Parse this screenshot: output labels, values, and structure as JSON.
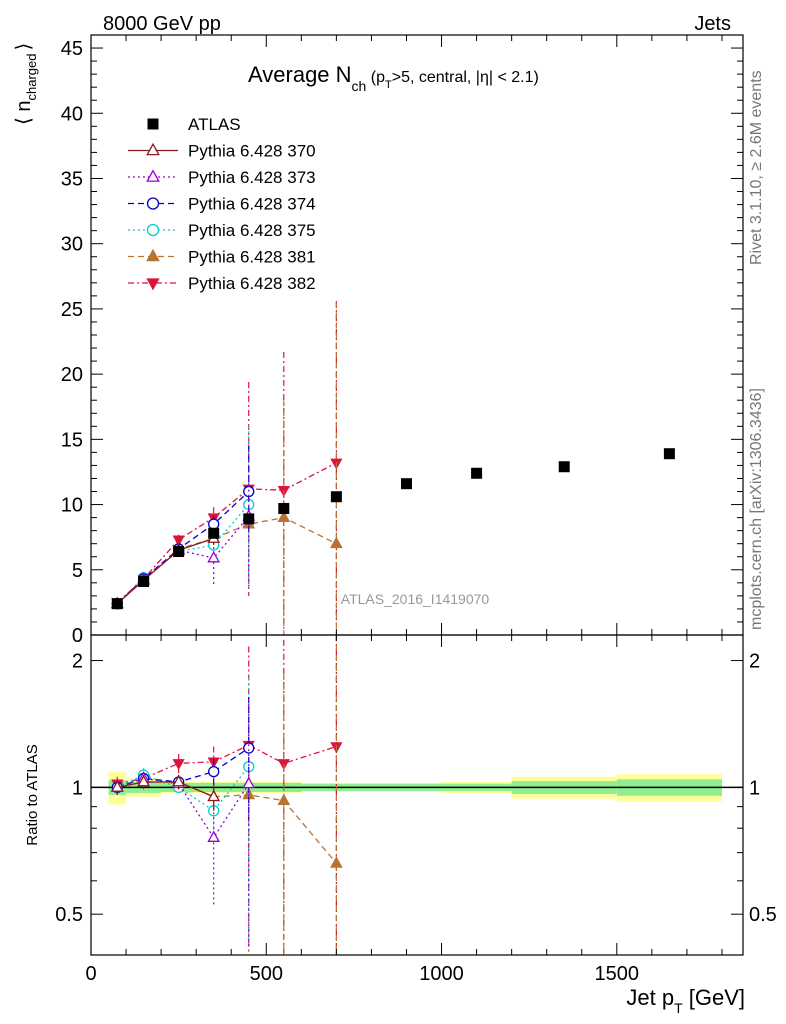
{
  "header": {
    "left": "8000 GeV pp",
    "right": "Jets",
    "rivet": "Rivet 3.1.10, ≥ 2.6M events",
    "mcplots": "mcplots.cern.ch [arXiv:1306.3436]"
  },
  "chart_data": [
    {
      "type": "scatter",
      "title": {
        "main": "Average N",
        "sub": "ch",
        "rest1": " (p",
        "sub2": "T",
        "rest2": ">5, central, |η| < 2.1)"
      },
      "ylabel": {
        "main": "⟨ n",
        "sub": "charged",
        "close": "⟩"
      },
      "watermark": "ATLAS_2016_I1419070",
      "xlim": [
        0,
        1860
      ],
      "ylim": [
        0,
        46
      ],
      "yticks": [
        0,
        5,
        10,
        15,
        20,
        25,
        30,
        35,
        40,
        45
      ],
      "series": [
        {
          "name": "ATLAS",
          "color": "#000000",
          "marker": "square",
          "line": "none",
          "x": [
            75,
            150,
            250,
            350,
            450,
            550,
            700,
            900,
            1100,
            1350,
            1650
          ],
          "y": [
            2.4,
            4.1,
            6.4,
            7.8,
            8.9,
            9.7,
            10.6,
            11.6,
            12.4,
            12.9,
            13.9
          ],
          "err": [
            0,
            0,
            0,
            0,
            0,
            0,
            0,
            0,
            0,
            0,
            0
          ]
        },
        {
          "name": "Pythia 6.428 370",
          "color": "#8b1a1a",
          "marker": "triangle-up-open",
          "line": "solid",
          "x": [
            75,
            150,
            250,
            350
          ],
          "y": [
            2.4,
            4.2,
            6.5,
            7.4
          ],
          "err": [
            0.1,
            0.2,
            0.3,
            0.5
          ]
        },
        {
          "name": "Pythia 6.428 373",
          "color": "#9400d3",
          "marker": "triangle-up-open",
          "line": "dotted",
          "x": [
            75,
            150,
            250,
            350,
            450
          ],
          "y": [
            2.4,
            4.3,
            6.5,
            5.9,
            9.1
          ],
          "err": [
            0.1,
            0.2,
            0.3,
            2.0,
            5.5
          ]
        },
        {
          "name": "Pythia 6.428 374",
          "color": "#0000cd",
          "marker": "circle-open",
          "line": "dashed",
          "x": [
            75,
            150,
            250,
            350,
            450
          ],
          "y": [
            2.4,
            4.3,
            6.6,
            8.5,
            11.0
          ],
          "err": [
            0.1,
            0.2,
            0.3,
            0.6,
            3.5
          ]
        },
        {
          "name": "Pythia 6.428 375",
          "color": "#00ced1",
          "marker": "circle-open",
          "line": "dotted",
          "x": [
            75,
            150,
            250,
            350,
            450
          ],
          "y": [
            2.4,
            4.4,
            6.4,
            6.9,
            10.0
          ],
          "err": [
            0.1,
            0.2,
            0.3,
            0.8,
            6.0
          ]
        },
        {
          "name": "Pythia 6.428 381",
          "color": "#b87333",
          "marker": "triangle-up",
          "line": "dashed",
          "x": [
            75,
            150,
            250,
            350,
            450,
            550,
            700
          ],
          "y": [
            2.4,
            4.2,
            6.6,
            7.4,
            8.5,
            9.0,
            7.0
          ],
          "err": [
            0.1,
            0.2,
            0.3,
            0.5,
            2.0,
            9.0,
            18.5
          ]
        },
        {
          "name": "Pythia 6.428 382",
          "color": "#dc143c",
          "marker": "triangle-down",
          "line": "dashdot",
          "x": [
            75,
            150,
            250,
            350,
            450,
            550,
            700
          ],
          "y": [
            2.5,
            4.3,
            7.3,
            9.0,
            11.2,
            11.1,
            13.2
          ],
          "err": [
            0.1,
            0.2,
            0.4,
            0.8,
            8.2,
            10.6,
            12.4
          ]
        }
      ],
      "atlas_bands": {
        "bins": [
          [
            50,
            100
          ],
          [
            100,
            200
          ],
          [
            200,
            300
          ],
          [
            300,
            400
          ],
          [
            400,
            500
          ],
          [
            500,
            600
          ],
          [
            600,
            800
          ],
          [
            800,
            1000
          ],
          [
            1000,
            1200
          ],
          [
            1200,
            1500
          ],
          [
            1500,
            1800
          ]
        ]
      }
    },
    {
      "type": "scatter",
      "ylabel": "Ratio to ATLAS",
      "xlabel": {
        "main": "Jet p",
        "sub": "T",
        "unit": " [GeV]"
      },
      "xlim": [
        0,
        1860
      ],
      "ylim": [
        0.4,
        2.3
      ],
      "ylog": true,
      "xticks": [
        0,
        500,
        1000,
        1500
      ],
      "yticks_labeled": [
        0.5,
        1,
        2
      ],
      "series": [
        {
          "name": "Pythia 6.428 370",
          "color": "#8b1a1a",
          "marker": "triangle-up-open",
          "line": "solid",
          "x": [
            75,
            150,
            250,
            350
          ],
          "y": [
            1.0,
            1.03,
            1.03,
            0.95
          ],
          "err": [
            0.04,
            0.04,
            0.04,
            0.07
          ]
        },
        {
          "name": "Pythia 6.428 373",
          "color": "#9400d3",
          "marker": "triangle-up-open",
          "line": "dotted",
          "x": [
            75,
            150,
            250,
            350,
            450
          ],
          "y": [
            1.0,
            1.05,
            1.02,
            0.76,
            1.02
          ],
          "err": [
            0.04,
            0.04,
            0.04,
            0.24,
            0.6
          ]
        },
        {
          "name": "Pythia 6.428 374",
          "color": "#0000cd",
          "marker": "circle-open",
          "line": "dashed",
          "x": [
            75,
            150,
            250,
            350,
            450
          ],
          "y": [
            1.0,
            1.05,
            1.03,
            1.09,
            1.24
          ],
          "err": [
            0.04,
            0.04,
            0.04,
            0.08,
            0.4
          ]
        },
        {
          "name": "Pythia 6.428 375",
          "color": "#00ced1",
          "marker": "circle-open",
          "line": "dotted",
          "x": [
            75,
            150,
            250,
            350,
            450
          ],
          "y": [
            1.0,
            1.07,
            1.0,
            0.88,
            1.12
          ],
          "err": [
            0.04,
            0.04,
            0.04,
            0.1,
            0.7
          ]
        },
        {
          "name": "Pythia 6.428 381",
          "color": "#b87333",
          "marker": "triangle-up",
          "line": "dashed",
          "x": [
            75,
            150,
            250,
            350,
            450,
            550,
            700
          ],
          "y": [
            1.0,
            1.03,
            1.03,
            0.95,
            0.96,
            0.93,
            0.66
          ],
          "err": [
            0.04,
            0.04,
            0.04,
            0.06,
            0.2,
            0.93,
            1.74
          ]
        },
        {
          "name": "Pythia 6.428 382",
          "color": "#dc143c",
          "marker": "triangle-down",
          "line": "dashdot",
          "x": [
            75,
            150,
            250,
            350,
            450,
            550,
            700
          ],
          "y": [
            1.02,
            1.05,
            1.14,
            1.15,
            1.26,
            1.14,
            1.25
          ],
          "err": [
            0.04,
            0.04,
            0.06,
            0.1,
            0.9,
            1.1,
            1.2
          ]
        }
      ],
      "atlas_bands": {
        "bins": [
          [
            50,
            100
          ],
          [
            100,
            200
          ],
          [
            200,
            300
          ],
          [
            300,
            400
          ],
          [
            400,
            500
          ],
          [
            500,
            600
          ],
          [
            600,
            800
          ],
          [
            800,
            1000
          ],
          [
            1000,
            1200
          ],
          [
            1200,
            1500
          ],
          [
            1500,
            1800
          ]
        ],
        "inner": [
          0.04,
          0.03,
          0.025,
          0.025,
          0.025,
          0.025,
          0.02,
          0.02,
          0.02,
          0.035,
          0.045
        ],
        "outer": [
          0.09,
          0.05,
          0.03,
          0.03,
          0.03,
          0.03,
          0.025,
          0.025,
          0.03,
          0.06,
          0.075
        ],
        "inner_color": "#90ee90",
        "outer_color": "#ffff99"
      }
    }
  ]
}
